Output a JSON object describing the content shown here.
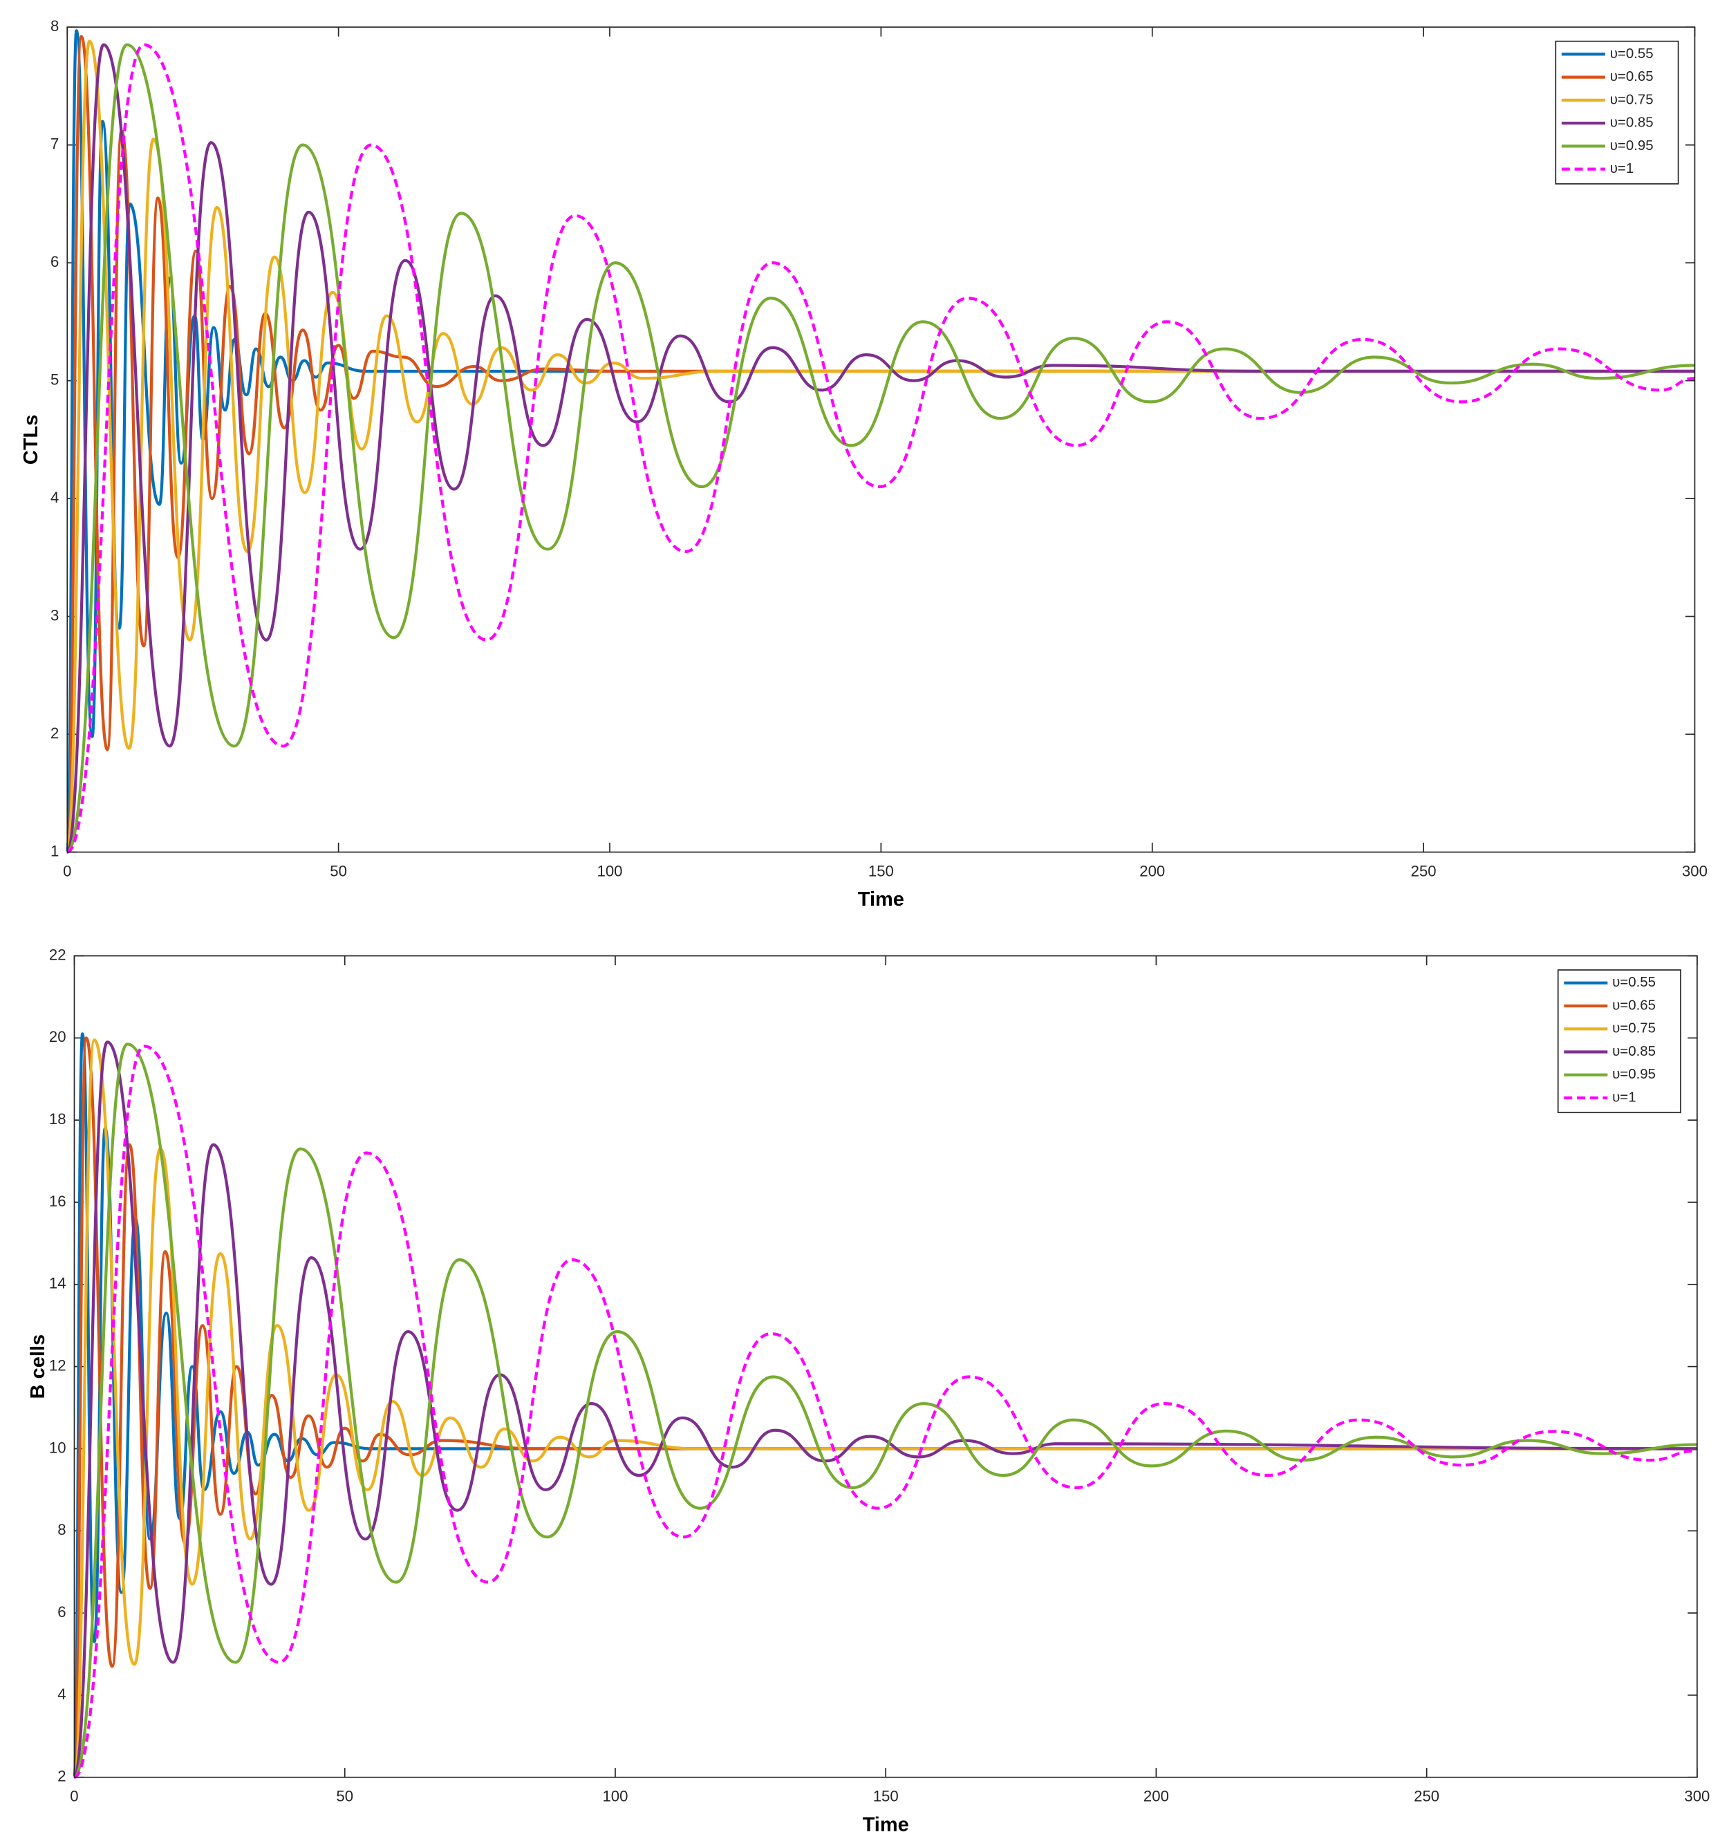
{
  "chart_data": [
    {
      "type": "line",
      "xlabel": "Time",
      "ylabel": "CTLs",
      "xlim": [
        0,
        300
      ],
      "ylim": [
        1,
        8
      ],
      "xticks": [
        0,
        50,
        100,
        150,
        200,
        250,
        300
      ],
      "yticks": [
        1,
        2,
        3,
        4,
        5,
        6,
        7,
        8
      ],
      "legend": "northeast",
      "series": [
        {
          "name": "υ=0.55",
          "color": "#0072BD",
          "x": [
            0,
            1.7,
            4.6,
            6.5,
            9.6,
            11.5,
            17,
            18.9,
            21,
            23.5,
            25,
            27,
            29.1,
            30.8,
            33,
            34.8,
            37.1,
            39.3,
            41.5,
            43.7,
            45.8,
            48,
            55,
            300
          ],
          "values": [
            1,
            7.97,
            1.98,
            7.2,
            2.9,
            6.5,
            3.95,
            5.87,
            4.3,
            5.55,
            4.5,
            5.45,
            4.75,
            5.35,
            4.88,
            5.27,
            4.95,
            5.2,
            5.0,
            5.17,
            5.03,
            5.15,
            5.08,
            5.08
          ]
        },
        {
          "name": "υ=0.65",
          "color": "#D95319",
          "x": [
            0,
            2.6,
            7.4,
            10,
            14.1,
            16.7,
            20.4,
            23.7,
            26.7,
            30,
            33.5,
            36.5,
            40,
            43.4,
            46.7,
            50,
            52.8,
            56.3,
            62,
            68,
            75,
            80,
            88,
            100,
            300
          ],
          "values": [
            1,
            7.92,
            1.87,
            7.12,
            2.75,
            6.55,
            3.5,
            6.1,
            4.0,
            5.8,
            4.38,
            5.57,
            4.6,
            5.43,
            4.75,
            5.3,
            4.85,
            5.25,
            5.2,
            4.95,
            5.12,
            5.0,
            5.1,
            5.08,
            5.08
          ]
        },
        {
          "name": "υ=0.75",
          "color": "#EDB120",
          "x": [
            0,
            4.1,
            11.4,
            15.9,
            22.6,
            27.6,
            33.2,
            38.2,
            43.8,
            48.9,
            54.3,
            58.9,
            64.5,
            69.3,
            74.7,
            80,
            85.6,
            90.4,
            95.6,
            100.6,
            106,
            120,
            300
          ],
          "values": [
            1,
            7.88,
            1.88,
            7.05,
            2.8,
            6.47,
            3.55,
            6.05,
            4.05,
            5.75,
            4.42,
            5.55,
            4.65,
            5.4,
            4.8,
            5.28,
            4.92,
            5.22,
            4.98,
            5.15,
            5.02,
            5.08,
            5.08
          ]
        },
        {
          "name": "υ=0.85",
          "color": "#7E2F8E",
          "x": [
            0,
            6.7,
            18.9,
            26.5,
            36.7,
            44.5,
            54,
            62.3,
            71.3,
            78.9,
            87.7,
            95.8,
            105,
            113,
            122,
            130,
            139,
            147.3,
            156,
            164,
            173,
            181.6,
            220,
            300
          ],
          "values": [
            1,
            7.85,
            1.9,
            7.02,
            2.8,
            6.43,
            3.57,
            6.02,
            4.08,
            5.72,
            4.45,
            5.52,
            4.65,
            5.38,
            4.82,
            5.28,
            4.92,
            5.22,
            5.0,
            5.17,
            5.03,
            5.13,
            5.08,
            5.08
          ]
        },
        {
          "name": "υ=0.95",
          "color": "#77AC30",
          "x": [
            0,
            11,
            30.8,
            43.4,
            60.2,
            72.6,
            88.6,
            101,
            117,
            129.7,
            144.5,
            157.7,
            172,
            185.5,
            199.6,
            213.3,
            227.3,
            241,
            255,
            270,
            282.4,
            300
          ],
          "values": [
            1,
            7.85,
            1.9,
            7.0,
            2.82,
            6.42,
            3.57,
            6.0,
            4.1,
            5.7,
            4.45,
            5.5,
            4.68,
            5.36,
            4.82,
            5.27,
            4.9,
            5.2,
            4.98,
            5.14,
            5.02,
            5.13
          ]
        },
        {
          "name": "υ=1",
          "color": "#FF00FF",
          "dash": true,
          "x": [
            0,
            14.1,
            39.8,
            56,
            77.3,
            93.6,
            114,
            130,
            149.7,
            166,
            186,
            202.7,
            220,
            238.8,
            257,
            275,
            293.7,
            300
          ],
          "values": [
            1,
            7.85,
            1.9,
            7.0,
            2.8,
            6.4,
            3.55,
            6.0,
            4.1,
            5.7,
            4.45,
            5.5,
            4.68,
            5.35,
            4.82,
            5.27,
            4.92,
            5.02
          ]
        }
      ]
    },
    {
      "type": "line",
      "xlabel": "Time",
      "ylabel": "B cells",
      "xlim": [
        0,
        300
      ],
      "ylim": [
        2,
        22
      ],
      "xticks": [
        0,
        50,
        100,
        150,
        200,
        250,
        300
      ],
      "yticks": [
        2,
        4,
        6,
        8,
        10,
        12,
        14,
        16,
        18,
        20,
        22
      ],
      "legend": "northeast",
      "series": [
        {
          "name": "υ=0.55",
          "color": "#0072BD",
          "x": [
            0,
            1.5,
            3.7,
            5.7,
            8.7,
            11.3,
            14,
            17,
            19.5,
            21.8,
            24,
            27,
            29.5,
            32,
            34,
            37,
            39.5,
            42,
            45,
            48,
            55,
            300
          ],
          "values": [
            2,
            20.1,
            5.3,
            17.8,
            6.5,
            15.6,
            7.8,
            13.3,
            8.3,
            12.0,
            9.0,
            10.9,
            9.4,
            10.4,
            9.6,
            10.35,
            9.7,
            10.25,
            9.85,
            10.15,
            10,
            10
          ]
        },
        {
          "name": "υ=0.65",
          "color": "#D95319",
          "x": [
            0,
            2.2,
            7,
            10.2,
            14,
            16.8,
            20.5,
            23.7,
            27,
            30,
            33.5,
            36.5,
            40,
            43.3,
            46.7,
            50,
            53.3,
            56.5,
            62,
            68,
            85,
            300
          ],
          "values": [
            2,
            20.0,
            4.7,
            17.4,
            6.6,
            14.8,
            7.7,
            13.0,
            8.4,
            12.0,
            8.9,
            11.3,
            9.3,
            10.8,
            9.55,
            10.5,
            9.7,
            10.35,
            9.85,
            10.2,
            10,
            10
          ]
        },
        {
          "name": "υ=0.75",
          "color": "#EDB120",
          "x": [
            0,
            3.7,
            11.1,
            15.9,
            21.8,
            27,
            32.5,
            37.5,
            43.4,
            48.4,
            54.2,
            58.8,
            64.3,
            69.5,
            75.2,
            79.5,
            84.7,
            89.8,
            95.2,
            100,
            115,
            300
          ],
          "values": [
            2,
            19.95,
            4.75,
            17.3,
            6.7,
            14.75,
            7.8,
            13.0,
            8.5,
            11.8,
            9.0,
            11.15,
            9.35,
            10.75,
            9.55,
            10.48,
            9.7,
            10.28,
            9.8,
            10.2,
            10,
            10
          ]
        },
        {
          "name": "υ=0.85",
          "color": "#7E2F8E",
          "x": [
            0,
            6.1,
            18.3,
            25.7,
            36.4,
            43.8,
            53.8,
            61.7,
            70.8,
            78.7,
            87.1,
            95.6,
            104.4,
            112.4,
            121.6,
            129.6,
            138.8,
            147,
            156,
            164.5,
            173.6,
            181.5,
            300
          ],
          "values": [
            2,
            19.9,
            4.8,
            17.4,
            6.7,
            14.65,
            7.8,
            12.85,
            8.5,
            11.8,
            9.0,
            11.1,
            9.35,
            10.75,
            9.55,
            10.45,
            9.7,
            10.3,
            9.8,
            10.2,
            9.88,
            10.12,
            10
          ]
        },
        {
          "name": "υ=0.95",
          "color": "#77AC30",
          "x": [
            0,
            9.8,
            29.8,
            41.8,
            59.5,
            71.2,
            87.4,
            100.4,
            115.7,
            129.2,
            143.8,
            157,
            171.7,
            184.7,
            199.1,
            213,
            226.8,
            240.7,
            254.9,
            268.6,
            282.6,
            300
          ],
          "values": [
            2,
            19.85,
            4.8,
            17.3,
            6.75,
            14.6,
            7.85,
            12.85,
            8.55,
            11.75,
            9.05,
            11.1,
            9.35,
            10.7,
            9.58,
            10.43,
            9.72,
            10.28,
            9.8,
            10.2,
            9.88,
            10.1
          ]
        },
        {
          "name": "υ=1",
          "color": "#FF00FF",
          "dash": true,
          "x": [
            0,
            12.9,
            37.9,
            54,
            76.5,
            92,
            112.6,
            128.8,
            148.6,
            165.4,
            185.2,
            201.5,
            220.5,
            237.5,
            256.4,
            273.4,
            291.3,
            300
          ],
          "values": [
            2,
            19.8,
            4.8,
            17.2,
            6.75,
            14.6,
            7.85,
            12.8,
            8.55,
            11.75,
            9.05,
            11.1,
            9.35,
            10.7,
            9.6,
            10.42,
            9.72,
            9.95
          ]
        }
      ]
    }
  ]
}
